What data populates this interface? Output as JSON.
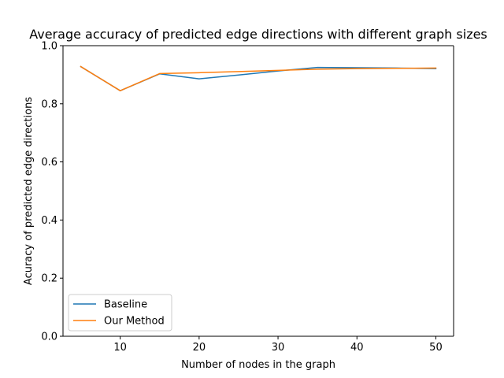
{
  "chart_data": {
    "type": "line",
    "title": "Average accuracy of predicted edge directions with different graph sizes",
    "xlabel": "Number of nodes in the graph",
    "ylabel": "Acuracy of predicted edge directions",
    "xlim": [
      2.75,
      52.25
    ],
    "ylim": [
      0.0,
      1.0
    ],
    "xticks": [
      10,
      20,
      30,
      40,
      50
    ],
    "yticks": [
      0.0,
      0.2,
      0.4,
      0.6,
      0.8,
      1.0
    ],
    "xtick_labels": [
      "10",
      "20",
      "30",
      "40",
      "50"
    ],
    "ytick_labels": [
      "0.0",
      "0.2",
      "0.4",
      "0.6",
      "0.8",
      "1.0"
    ],
    "grid": false,
    "legend_position": "lower-left",
    "x": [
      5,
      10,
      15,
      20,
      25,
      30,
      35,
      40,
      45,
      50
    ],
    "series": [
      {
        "name": "Baseline",
        "color": "#1f77b4",
        "values": [
          0.928,
          0.845,
          0.903,
          0.886,
          0.899,
          0.913,
          0.925,
          0.924,
          0.923,
          0.921
        ]
      },
      {
        "name": "Our Method",
        "color": "#ff7f0e",
        "values": [
          0.928,
          0.845,
          0.904,
          0.907,
          0.911,
          0.915,
          0.919,
          0.921,
          0.922,
          0.923
        ]
      }
    ]
  }
}
